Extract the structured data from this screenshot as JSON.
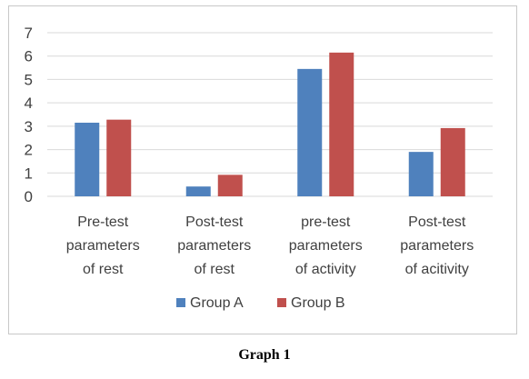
{
  "chart_data": {
    "type": "bar",
    "categories": [
      [
        "Pre-test",
        "parameters",
        "of rest"
      ],
      [
        "Post-test",
        "parameters",
        "of rest"
      ],
      [
        "pre-test",
        "parameters",
        "of activity"
      ],
      [
        "Post-test",
        "parameters",
        "of acitivity"
      ]
    ],
    "series": [
      {
        "name": "Group A",
        "values": [
          3.15,
          0.42,
          5.45,
          1.9
        ],
        "color": "#4f81bd"
      },
      {
        "name": "Group B",
        "values": [
          3.28,
          0.92,
          6.15,
          2.92
        ],
        "color": "#c0504d"
      }
    ],
    "ylim": [
      0,
      7
    ],
    "yticks": [
      "0",
      "1",
      "2",
      "3",
      "4",
      "5",
      "6",
      "7"
    ],
    "grid": true,
    "legend": "bottom"
  },
  "caption": "Graph 1"
}
